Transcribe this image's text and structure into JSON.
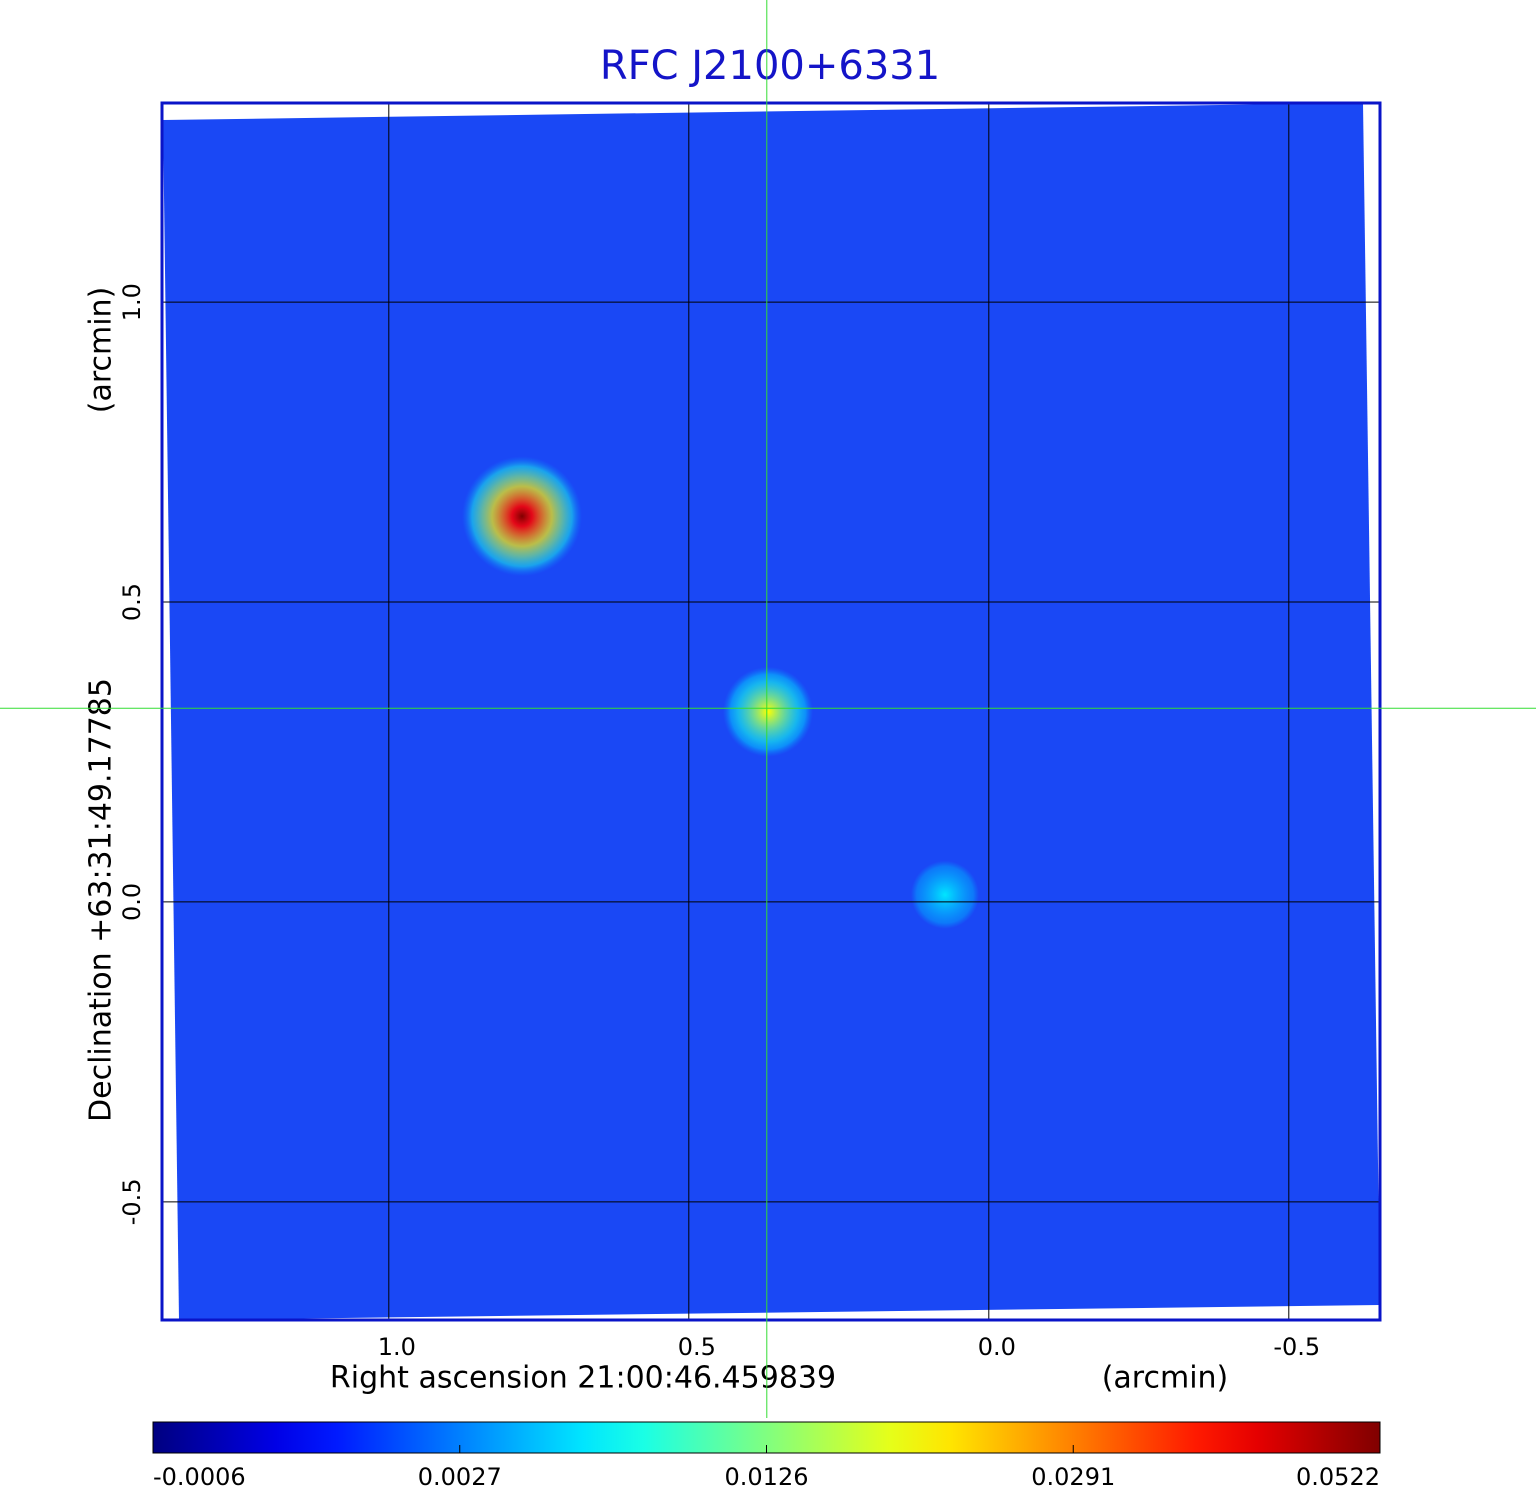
{
  "chart_data": {
    "type": "image",
    "title": "RFC J2100+6331",
    "x_label": "Right ascension  21:00:46.459839",
    "x_unit": "(arcmin)",
    "y_label": "Declination  +63:31:49.17785",
    "y_unit": "(arcmin)",
    "xlim": [
      1.378,
      -0.652
    ],
    "ylim": [
      -0.697,
      1.332
    ],
    "xticks": [
      {
        "value": 1,
        "label": "1.0"
      },
      0.5,
      {
        "value": 0,
        "label": "0.0"
      },
      -0.5
    ],
    "yticks": [
      -0.5,
      {
        "value": 0,
        "label": "0.0"
      },
      0.5,
      {
        "value": 1,
        "label": "1.0"
      }
    ],
    "grid": true,
    "crosshair": {
      "x": 0.37,
      "y": 0.323,
      "color": "#33dd33"
    },
    "sources": [
      {
        "x": 0.778,
        "y": 0.643,
        "peak": 0.0522
      },
      {
        "x": 0.368,
        "y": 0.317,
        "peak": 0.02
      },
      {
        "x": 0.073,
        "y": 0.012,
        "peak": 0.0059
      }
    ],
    "colormap": "jet",
    "colorbar_scale": "sqrt",
    "colorbar_lim": [
      -0.0006,
      0.0522
    ],
    "colorbar_ticks": [
      -0.0006,
      0.0027,
      0.0126,
      0.0291,
      0.0522
    ]
  }
}
